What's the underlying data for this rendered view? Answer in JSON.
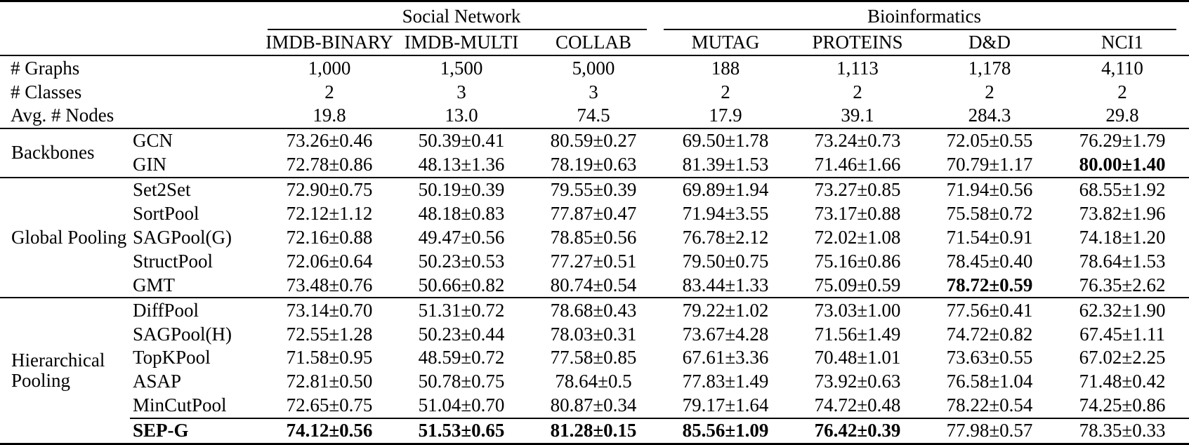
{
  "table": {
    "groups": [
      {
        "label": "Social Network",
        "span": 3
      },
      {
        "label": "Bioinformatics",
        "span": 4
      }
    ],
    "columns": [
      "IMDB-BINARY",
      "IMDB-MULTI",
      "COLLAB",
      "MUTAG",
      "PROTEINS",
      "D&D",
      "NCI1"
    ],
    "stats_rows": [
      {
        "label": "# Graphs",
        "values": [
          "1,000",
          "1,500",
          "5,000",
          "188",
          "1,113",
          "1,178",
          "4,110"
        ]
      },
      {
        "label": "# Classes",
        "values": [
          "2",
          "3",
          "3",
          "2",
          "2",
          "2",
          "2"
        ]
      },
      {
        "label": "Avg. # Nodes",
        "values": [
          "19.8",
          "13.0",
          "74.5",
          "17.9",
          "39.1",
          "284.3",
          "29.8"
        ]
      }
    ],
    "sections": [
      {
        "group": "Backbones",
        "rows": [
          {
            "method": "GCN",
            "values": [
              "73.26±0.46",
              "50.39±0.41",
              "80.59±0.27",
              "69.50±1.78",
              "73.24±0.73",
              "72.05±0.55",
              "76.29±1.79"
            ],
            "bold": []
          },
          {
            "method": "GIN",
            "values": [
              "72.78±0.86",
              "48.13±1.36",
              "78.19±0.63",
              "81.39±1.53",
              "71.46±1.66",
              "70.79±1.17",
              "80.00±1.40"
            ],
            "bold": [
              6
            ]
          }
        ]
      },
      {
        "group": "Global Pooling",
        "rows": [
          {
            "method": "Set2Set",
            "values": [
              "72.90±0.75",
              "50.19±0.39",
              "79.55±0.39",
              "69.89±1.94",
              "73.27±0.85",
              "71.94±0.56",
              "68.55±1.92"
            ],
            "bold": []
          },
          {
            "method": "SortPool",
            "values": [
              "72.12±1.12",
              "48.18±0.83",
              "77.87±0.47",
              "71.94±3.55",
              "73.17±0.88",
              "75.58±0.72",
              "73.82±1.96"
            ],
            "bold": []
          },
          {
            "method": "SAGPool(G)",
            "values": [
              "72.16±0.88",
              "49.47±0.56",
              "78.85±0.56",
              "76.78±2.12",
              "72.02±1.08",
              "71.54±0.91",
              "74.18±1.20"
            ],
            "bold": []
          },
          {
            "method": "StructPool",
            "values": [
              "72.06±0.64",
              "50.23±0.53",
              "77.27±0.51",
              "79.50±0.75",
              "75.16±0.86",
              "78.45±0.40",
              "78.64±1.53"
            ],
            "bold": []
          },
          {
            "method": "GMT",
            "values": [
              "73.48±0.76",
              "50.66±0.82",
              "80.74±0.54",
              "83.44±1.33",
              "75.09±0.59",
              "78.72±0.59",
              "76.35±2.62"
            ],
            "bold": [
              5
            ]
          }
        ]
      },
      {
        "group": "Hierarchical Pooling",
        "rows": [
          {
            "method": "DiffPool",
            "values": [
              "73.14±0.70",
              "51.31±0.72",
              "78.68±0.43",
              "79.22±1.02",
              "73.03±1.00",
              "77.56±0.41",
              "62.32±1.90"
            ],
            "bold": []
          },
          {
            "method": "SAGPool(H)",
            "values": [
              "72.55±1.28",
              "50.23±0.44",
              "78.03±0.31",
              "73.67±4.28",
              "71.56±1.49",
              "74.72±0.82",
              "67.45±1.11"
            ],
            "bold": []
          },
          {
            "method": "TopKPool",
            "values": [
              "71.58±0.95",
              "48.59±0.72",
              "77.58±0.85",
              "67.61±3.36",
              "70.48±1.01",
              "73.63±0.55",
              "67.02±2.25"
            ],
            "bold": []
          },
          {
            "method": "ASAP",
            "values": [
              "72.81±0.50",
              "50.78±0.75",
              "78.64±0.5",
              "77.83±1.49",
              "73.92±0.63",
              "76.58±1.04",
              "71.48±0.42"
            ],
            "bold": []
          },
          {
            "method": "MinCutPool",
            "values": [
              "72.65±0.75",
              "51.04±0.70",
              "80.87±0.34",
              "79.17±1.64",
              "74.72±0.48",
              "78.22±0.54",
              "74.25±0.86"
            ],
            "bold": []
          },
          {
            "method": "SEP-G",
            "values": [
              "74.12±0.56",
              "51.53±0.65",
              "81.28±0.15",
              "85.56±1.09",
              "76.42±0.39",
              "77.98±0.57",
              "78.35±0.33"
            ],
            "bold": [
              0,
              1,
              2,
              3,
              4
            ],
            "method_bold": true,
            "rule_above": true
          }
        ]
      }
    ]
  }
}
